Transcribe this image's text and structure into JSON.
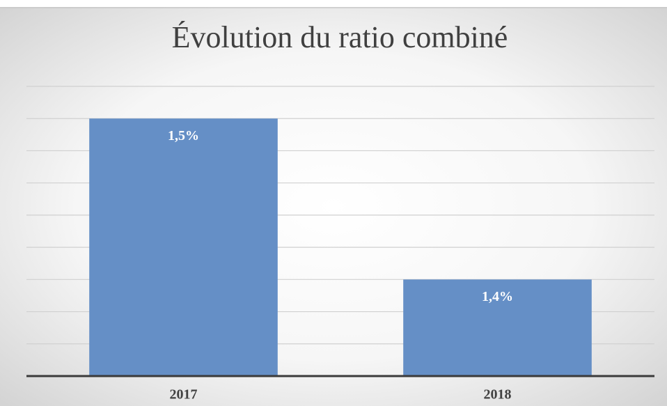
{
  "chart_data": {
    "type": "bar",
    "title": "Évolution du ratio combiné",
    "categories": [
      "2017",
      "2018"
    ],
    "values": [
      1.5,
      1.4
    ],
    "value_labels": [
      "1,5%",
      "1,4%"
    ],
    "color": "#658fc6",
    "ylim": [
      1.34,
      1.52
    ],
    "yticks": [
      1.34,
      1.36,
      1.38,
      1.4,
      1.42,
      1.44,
      1.46,
      1.48,
      1.5,
      1.52
    ],
    "grid": true
  }
}
